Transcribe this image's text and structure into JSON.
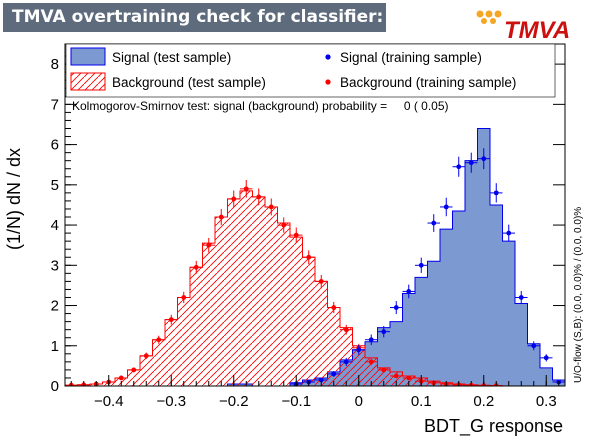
{
  "header": {
    "title": "TMVA overtraining check for classifier: BDT_G"
  },
  "logo": {
    "text": "TMVA"
  },
  "colors": {
    "signal_fill": "#7d99d1",
    "signal_line": "#0000ee",
    "background_line": "#ff0000",
    "frame": "#000000"
  },
  "chart_data": {
    "type": "histogram",
    "xlabel": "BDT_G response",
    "ylabel": "(1/N) dN / dx",
    "xlim": [
      -0.47,
      0.33
    ],
    "ylim": [
      0,
      8.5
    ],
    "x_ticks": [
      -0.4,
      -0.3,
      -0.2,
      -0.1,
      0,
      0.1,
      0.2,
      0.3
    ],
    "x_tick_labels": [
      "−0.4",
      "−0.3",
      "−0.2",
      "−0.1",
      "0",
      "0.1",
      "0.2",
      "0.3"
    ],
    "y_ticks": [
      0,
      1,
      2,
      3,
      4,
      5,
      6,
      7,
      8
    ],
    "y_tick_labels": [
      "0",
      "1",
      "2",
      "3",
      "4",
      "5",
      "6",
      "7",
      "8"
    ],
    "bin_width": 0.02,
    "bin_centers": [
      -0.46,
      -0.44,
      -0.42,
      -0.4,
      -0.38,
      -0.36,
      -0.34,
      -0.32,
      -0.3,
      -0.28,
      -0.26,
      -0.24,
      -0.22,
      -0.2,
      -0.18,
      -0.16,
      -0.14,
      -0.12,
      -0.1,
      -0.08,
      -0.06,
      -0.04,
      -0.02,
      0.0,
      0.02,
      0.04,
      0.06,
      0.08,
      0.1,
      0.12,
      0.14,
      0.16,
      0.18,
      0.2,
      0.22,
      0.24,
      0.26,
      0.28,
      0.3,
      0.32
    ],
    "series": [
      {
        "name": "Signal (test sample)",
        "style": "filled-histogram",
        "values": [
          0,
          0,
          0,
          0,
          0,
          0,
          0,
          0,
          0,
          0,
          0,
          0,
          0,
          0.05,
          0.05,
          0,
          0,
          0,
          0.08,
          0.15,
          0.2,
          0.35,
          0.65,
          0.9,
          1.1,
          1.45,
          1.6,
          2.3,
          2.7,
          3.1,
          3.9,
          4.35,
          5.6,
          6.4,
          4.5,
          3.6,
          2.05,
          1.05,
          0.45,
          0.15
        ]
      },
      {
        "name": "Background (test sample)",
        "style": "hatched-histogram",
        "values": [
          0.02,
          0.03,
          0.05,
          0.1,
          0.2,
          0.4,
          0.75,
          1.15,
          1.65,
          2.2,
          2.95,
          3.55,
          4.2,
          4.65,
          4.85,
          4.7,
          4.45,
          4.05,
          3.7,
          3.2,
          2.6,
          1.95,
          1.45,
          1.0,
          0.7,
          0.45,
          0.35,
          0.25,
          0.2,
          0.12,
          0.08,
          0.05,
          0.03,
          0.02,
          0.01,
          0,
          0,
          0,
          0,
          0
        ]
      },
      {
        "name": "Signal (training sample)",
        "style": "points",
        "values": [
          null,
          null,
          null,
          null,
          null,
          null,
          null,
          null,
          null,
          null,
          null,
          null,
          null,
          null,
          null,
          null,
          null,
          null,
          0.05,
          0.1,
          0.15,
          0.3,
          0.6,
          0.9,
          1.15,
          1.35,
          1.95,
          2.35,
          3.0,
          4.05,
          4.45,
          5.45,
          5.55,
          5.65,
          4.8,
          3.8,
          2.2,
          1.0,
          0.7,
          0.1
        ],
        "errors": [
          null,
          null,
          null,
          null,
          null,
          null,
          null,
          null,
          null,
          null,
          null,
          null,
          null,
          null,
          null,
          null,
          null,
          null,
          0.03,
          0.04,
          0.05,
          0.07,
          0.1,
          0.12,
          0.13,
          0.14,
          0.16,
          0.17,
          0.19,
          0.22,
          0.23,
          0.25,
          0.25,
          0.26,
          0.24,
          0.21,
          0.16,
          0.11,
          0.09,
          0.04
        ]
      },
      {
        "name": "Background (training sample)",
        "style": "points",
        "values": [
          0.02,
          0.03,
          0.05,
          0.1,
          0.2,
          0.4,
          0.75,
          1.15,
          1.65,
          2.2,
          2.95,
          3.5,
          4.2,
          4.65,
          4.9,
          4.7,
          4.45,
          4.0,
          3.75,
          3.2,
          2.6,
          1.95,
          1.4,
          0.95,
          0.6,
          0.4,
          0.25,
          0.2,
          0.12,
          0.08,
          0.05,
          0.03,
          0.02,
          0.01,
          0.01,
          null,
          null,
          null,
          null,
          null
        ],
        "errors": [
          0.01,
          0.01,
          0.02,
          0.03,
          0.04,
          0.06,
          0.08,
          0.1,
          0.12,
          0.14,
          0.16,
          0.18,
          0.2,
          0.21,
          0.22,
          0.21,
          0.21,
          0.19,
          0.19,
          0.17,
          0.16,
          0.14,
          0.12,
          0.1,
          0.08,
          0.06,
          0.05,
          0.04,
          0.03,
          0.03,
          0.02,
          0.02,
          0.01,
          0.01,
          0.01,
          null,
          null,
          null,
          null,
          null
        ]
      }
    ],
    "legend": {
      "entries": [
        "Signal (test sample)",
        "Background (test sample)",
        "Signal (training sample)",
        "Background (training sample)"
      ],
      "placement": "top"
    },
    "annotation": "Kolmogorov-Smirnov test: signal (background) probability =     0 ( 0.05)",
    "side_note": "U/O-flow (S,B): (0.0, 0.0)% / (0.0, 0.0)%"
  }
}
